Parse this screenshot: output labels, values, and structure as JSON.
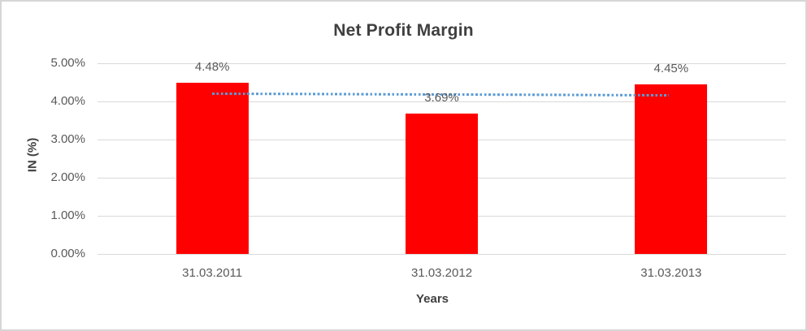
{
  "chart_data": {
    "type": "bar",
    "title": "Net Profit Margin",
    "xlabel": "Years",
    "ylabel": "IN (%)",
    "categories": [
      "31.03.2011",
      "31.03.2012",
      "31.03.2013"
    ],
    "values": [
      4.48,
      3.69,
      4.45
    ],
    "data_labels": [
      "4.48%",
      "3.69%",
      "4.45%"
    ],
    "y_ticks": [
      {
        "label": "0.00%",
        "value": 0
      },
      {
        "label": "1.00%",
        "value": 1
      },
      {
        "label": "2.00%",
        "value": 2
      },
      {
        "label": "3.00%",
        "value": 3
      },
      {
        "label": "4.00%",
        "value": 4
      },
      {
        "label": "5.00%",
        "value": 5
      }
    ],
    "ylim": [
      0,
      5
    ],
    "grid": "horizontal",
    "legend": "none",
    "bar_color": "#FF0000",
    "trendline": {
      "type": "linear",
      "style": "dotted",
      "color": "#5B9BD5",
      "start_value": 4.21,
      "end_value": 4.17
    }
  },
  "colors": {
    "title_text": "#3F3F3F",
    "axis_text": "#595959",
    "axis_title_text": "#404040",
    "gridline": "#D9D9D9",
    "frame_border": "#D6D6D6",
    "background": "#FFFFFF"
  }
}
